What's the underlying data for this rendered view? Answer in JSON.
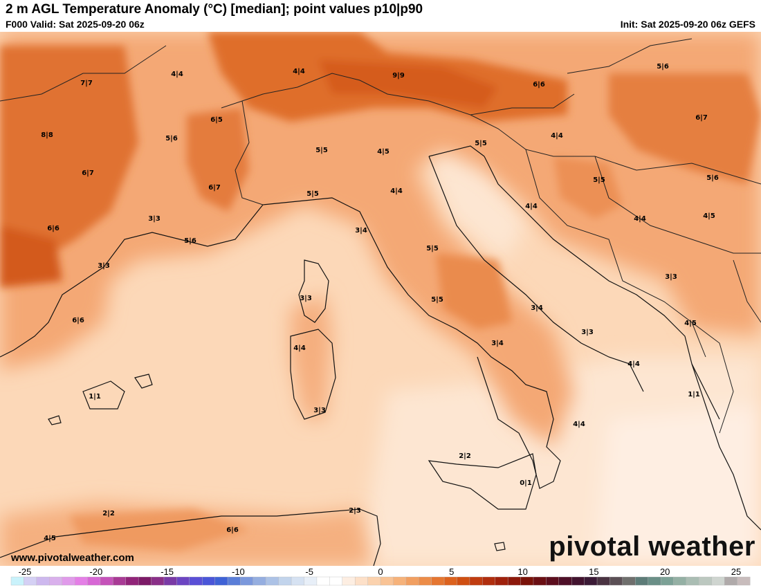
{
  "header": {
    "title": "2 m AGL Temperature Anomaly (°C) [median]; point values p10|p90",
    "valid": "F000 Valid: Sat 2025-09-20 06z",
    "init": "Init: Sat 2025-09-20 06z GEFS"
  },
  "footer": {
    "website": "www.pivotalweather.com",
    "logo_text": "pivotal weather"
  },
  "point_values": [
    {
      "label": "7|7"
    },
    {
      "label": "4|4"
    },
    {
      "label": "4|4"
    },
    {
      "label": "9|9"
    },
    {
      "label": "6|6"
    },
    {
      "label": "5|6"
    },
    {
      "label": "8|8"
    },
    {
      "label": "5|6"
    },
    {
      "label": "6|5"
    },
    {
      "label": "6|7"
    },
    {
      "label": "5|5"
    },
    {
      "label": "4|5"
    },
    {
      "label": "5|5"
    },
    {
      "label": "4|4"
    },
    {
      "label": "6|7"
    },
    {
      "label": "6|7"
    },
    {
      "label": "5|5"
    },
    {
      "label": "5|6"
    },
    {
      "label": "5|5"
    },
    {
      "label": "4|4"
    },
    {
      "label": "4|4"
    },
    {
      "label": "3|3"
    },
    {
      "label": "6|6"
    },
    {
      "label": "5|6"
    },
    {
      "label": "3|4"
    },
    {
      "label": "4|5"
    },
    {
      "label": "4|4"
    },
    {
      "label": "3|3"
    },
    {
      "label": "5|5"
    },
    {
      "label": "3|3"
    },
    {
      "label": "3|3"
    },
    {
      "label": "5|5"
    },
    {
      "label": "3|4"
    },
    {
      "label": "4|5"
    },
    {
      "label": "6|6"
    },
    {
      "label": "3|3"
    },
    {
      "label": "3|4"
    },
    {
      "label": "4|4"
    },
    {
      "label": "4|4"
    },
    {
      "label": "1|1"
    },
    {
      "label": "1|1"
    },
    {
      "label": "3|3"
    },
    {
      "label": "4|4"
    },
    {
      "label": "2|2"
    },
    {
      "label": "0|1"
    },
    {
      "label": "2|2"
    },
    {
      "label": "2|3"
    },
    {
      "label": "6|6"
    },
    {
      "label": "4|5"
    }
  ],
  "colorbar": {
    "ticks": [
      "-25",
      "-20",
      "-15",
      "-10",
      "-5",
      "0",
      "5",
      "10",
      "15",
      "20",
      "25"
    ],
    "colors": [
      "#c9f2fb",
      "#d4d0f4",
      "#cdb8ee",
      "#d9b0ec",
      "#e09aea",
      "#e47fe6",
      "#d767d5",
      "#c552b9",
      "#a83a95",
      "#912479",
      "#7c1a67",
      "#8a2f88",
      "#7a3aa6",
      "#6c45c2",
      "#5a4fd6",
      "#4a56d8",
      "#3f62d6",
      "#5a7ed8",
      "#7b98dc",
      "#95aee0",
      "#acc2e6",
      "#c2d4ec",
      "#d6e2f2",
      "#e8eff8",
      "#ffffff",
      "#ffffff",
      "#fdeee2",
      "#fde0c8",
      "#fbd2ae",
      "#f9c395",
      "#f6b27a",
      "#f19f61",
      "#ec8c48",
      "#e57631",
      "#dc621e",
      "#cf4f12",
      "#c03c10",
      "#b02e0e",
      "#9f210c",
      "#8c180b",
      "#7a1209",
      "#6b0f14",
      "#5c0e1e",
      "#4e0f28",
      "#42132f",
      "#3b1a36",
      "#4a3342",
      "#5b4f55",
      "#6f6f6d",
      "#5d7c78",
      "#6a8f87",
      "#7ca196",
      "#94b0a4",
      "#aabdb3",
      "#bcc8c0",
      "#cfd5d0",
      "#b0aaaa",
      "#c8bcbc"
    ]
  }
}
